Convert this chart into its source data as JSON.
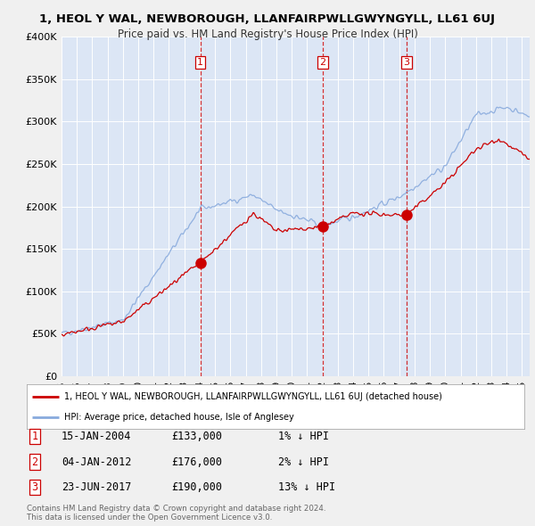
{
  "title_line1": "1, HEOL Y WAL, NEWBOROUGH, LLANFAIRPWLLGWYNGYLL, LL61 6UJ",
  "title_line2": "Price paid vs. HM Land Registry's House Price Index (HPI)",
  "background_color": "#f0f0f0",
  "plot_bg_color": "#dce6f5",
  "sale_color": "#cc0000",
  "hpi_color": "#88aadd",
  "vline_color": "#cc0000",
  "ylim": [
    0,
    400000
  ],
  "yticks": [
    0,
    50000,
    100000,
    150000,
    200000,
    250000,
    300000,
    350000,
    400000
  ],
  "ytick_labels": [
    "£0",
    "£50K",
    "£100K",
    "£150K",
    "£200K",
    "£250K",
    "£300K",
    "£350K",
    "£400K"
  ],
  "legend_property_label": "1, HEOL Y WAL, NEWBOROUGH, LLANFAIRPWLLGWYNGYLL, LL61 6UJ (detached house)",
  "legend_hpi_label": "HPI: Average price, detached house, Isle of Anglesey",
  "table_rows": [
    [
      "1",
      "15-JAN-2004",
      "£133,000",
      "1% ↓ HPI"
    ],
    [
      "2",
      "04-JAN-2012",
      "£176,000",
      "2% ↓ HPI"
    ],
    [
      "3",
      "23-JUN-2017",
      "£190,000",
      "13% ↓ HPI"
    ]
  ],
  "footer_text": "Contains HM Land Registry data © Crown copyright and database right 2024.\nThis data is licensed under the Open Government Licence v3.0.",
  "xlim_start": 1995.0,
  "xlim_end": 2025.5,
  "sale_decimal": [
    2004.04,
    2012.01,
    2017.48
  ],
  "sale_prices": [
    133000,
    176000,
    190000
  ],
  "sale_labels": [
    "1",
    "2",
    "3"
  ]
}
